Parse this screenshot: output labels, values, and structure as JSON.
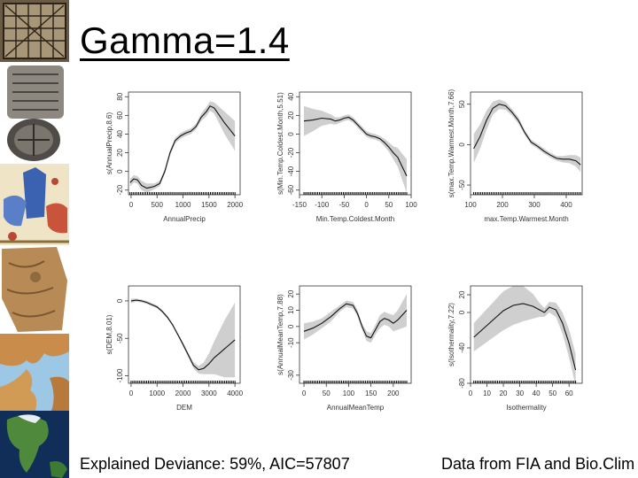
{
  "slide": {
    "title": "Gamma=1.4",
    "footer_left": "Explained Deviance: 59%, AIC=57807",
    "footer_right": "Data from FIA and Bio.Clim"
  },
  "decor": {
    "thumbnails": [
      "grid-map",
      "clay-tablet",
      "medieval-map",
      "parchment-map",
      "mediterranean-map",
      "globe-map"
    ]
  },
  "chart_data": [
    {
      "type": "line",
      "xlabel": "AnnualPrecip",
      "ylabel": "s(AnnualPrecip,8.6)",
      "xlim": [
        -50,
        2100
      ],
      "ylim": [
        -25,
        85
      ],
      "xticks": [
        0,
        500,
        1000,
        1500,
        2000
      ],
      "yticks": [
        -20,
        0,
        20,
        40,
        60,
        80
      ],
      "x": [
        -20,
        50,
        120,
        200,
        300,
        380,
        450,
        550,
        650,
        750,
        850,
        950,
        1050,
        1150,
        1250,
        1350,
        1450,
        1520,
        1600,
        1700,
        1800,
        1900,
        2000
      ],
      "y": [
        -12,
        -8,
        -9,
        -15,
        -18,
        -17,
        -16,
        -13,
        0,
        20,
        33,
        38,
        41,
        43,
        48,
        58,
        64,
        70,
        68,
        60,
        52,
        45,
        38
      ],
      "band": [
        4,
        4,
        4,
        5,
        5,
        4,
        3,
        3,
        3,
        3,
        3,
        3,
        3,
        3,
        3,
        4,
        5,
        5,
        6,
        9,
        12,
        14,
        16
      ]
    },
    {
      "type": "line",
      "xlabel": "Min.Temp.Coldest.Month",
      "ylabel": "s(Min.Temp.Coldest.Month,5.51)",
      "xlim": [
        -150,
        100
      ],
      "ylim": [
        -65,
        45
      ],
      "xticks": [
        -150,
        -100,
        -50,
        0,
        50,
        100
      ],
      "yticks": [
        -60,
        -40,
        -20,
        0,
        20,
        40
      ],
      "x": [
        -140,
        -120,
        -100,
        -80,
        -70,
        -60,
        -50,
        -40,
        -30,
        -20,
        -10,
        0,
        10,
        20,
        30,
        40,
        50,
        60,
        70,
        80,
        90
      ],
      "y": [
        14,
        15,
        17,
        16,
        14,
        15,
        17,
        18,
        15,
        10,
        5,
        0,
        -2,
        -3,
        -5,
        -9,
        -14,
        -20,
        -25,
        -35,
        -45
      ],
      "band": [
        16,
        12,
        8,
        5,
        4,
        3,
        3,
        3,
        3,
        3,
        3,
        3,
        3,
        3,
        3,
        4,
        5,
        7,
        10,
        14,
        18
      ]
    },
    {
      "type": "line",
      "xlabel": "max.Temp.Warmest.Month",
      "ylabel": "s(max.Temp.Warmest.Month,7.66)",
      "xlim": [
        100,
        450
      ],
      "ylim": [
        -62,
        65
      ],
      "xticks": [
        100,
        200,
        300,
        400
      ],
      "yticks": [
        -50,
        0,
        50
      ],
      "x": [
        110,
        130,
        150,
        170,
        190,
        210,
        230,
        250,
        270,
        290,
        310,
        330,
        350,
        370,
        390,
        410,
        430,
        445
      ],
      "y": [
        -5,
        10,
        30,
        45,
        50,
        48,
        40,
        30,
        15,
        3,
        -2,
        -8,
        -13,
        -17,
        -18,
        -18,
        -20,
        -25
      ],
      "band": [
        18,
        15,
        12,
        8,
        6,
        5,
        4,
        4,
        3,
        3,
        3,
        3,
        3,
        3,
        4,
        5,
        7,
        9
      ]
    },
    {
      "type": "line",
      "xlabel": "DEM",
      "ylabel": "s(DEM,8.01)",
      "xlim": [
        -100,
        4200
      ],
      "ylim": [
        -110,
        20
      ],
      "xticks": [
        0,
        1000,
        2000,
        3000,
        4000
      ],
      "yticks": [
        -100,
        -50,
        0
      ],
      "x": [
        0,
        200,
        400,
        600,
        800,
        1000,
        1200,
        1400,
        1600,
        1800,
        2000,
        2200,
        2400,
        2600,
        2800,
        3000,
        3200,
        3400,
        3600,
        3800,
        4000
      ],
      "y": [
        0,
        1,
        0,
        -2,
        -5,
        -8,
        -14,
        -22,
        -32,
        -45,
        -58,
        -72,
        -86,
        -92,
        -90,
        -84,
        -76,
        -70,
        -64,
        -58,
        -52
      ],
      "band": [
        3,
        2,
        2,
        2,
        2,
        2,
        2,
        2,
        2,
        2,
        3,
        3,
        4,
        5,
        8,
        14,
        22,
        30,
        38,
        44,
        50
      ]
    },
    {
      "type": "line",
      "xlabel": "AnnualMeanTemp",
      "ylabel": "s(AnnualMeanTemp,7.88)",
      "xlim": [
        -10,
        240
      ],
      "ylim": [
        -35,
        25
      ],
      "xticks": [
        0,
        50,
        100,
        150,
        200
      ],
      "yticks": [
        -30,
        -10,
        0,
        10,
        20
      ],
      "x": [
        0,
        20,
        40,
        60,
        80,
        95,
        110,
        120,
        130,
        140,
        150,
        160,
        170,
        180,
        190,
        200,
        210,
        220,
        230
      ],
      "y": [
        -3,
        -1,
        2,
        6,
        11,
        14,
        13,
        8,
        0,
        -6,
        -7,
        -2,
        3,
        5,
        4,
        2,
        4,
        7,
        10
      ],
      "band": [
        5,
        4,
        3,
        3,
        2,
        2,
        2,
        2,
        2,
        3,
        3,
        3,
        4,
        4,
        4,
        5,
        6,
        8,
        10
      ]
    },
    {
      "type": "line",
      "xlabel": "Isothermality",
      "ylabel": "s(Isothermality,7.22)",
      "xlim": [
        0,
        68
      ],
      "ylim": [
        -80,
        30
      ],
      "xticks": [
        0,
        10,
        20,
        30,
        40,
        50,
        60
      ],
      "yticks": [
        -80,
        -40,
        0,
        20
      ],
      "x": [
        2,
        8,
        14,
        20,
        26,
        32,
        38,
        42,
        45,
        48,
        52,
        56,
        60,
        64
      ],
      "y": [
        -28,
        -18,
        -8,
        2,
        8,
        10,
        7,
        3,
        0,
        6,
        3,
        -12,
        -35,
        -65
      ],
      "band": [
        16,
        18,
        20,
        22,
        22,
        20,
        14,
        8,
        5,
        6,
        8,
        12,
        16,
        18
      ]
    }
  ]
}
